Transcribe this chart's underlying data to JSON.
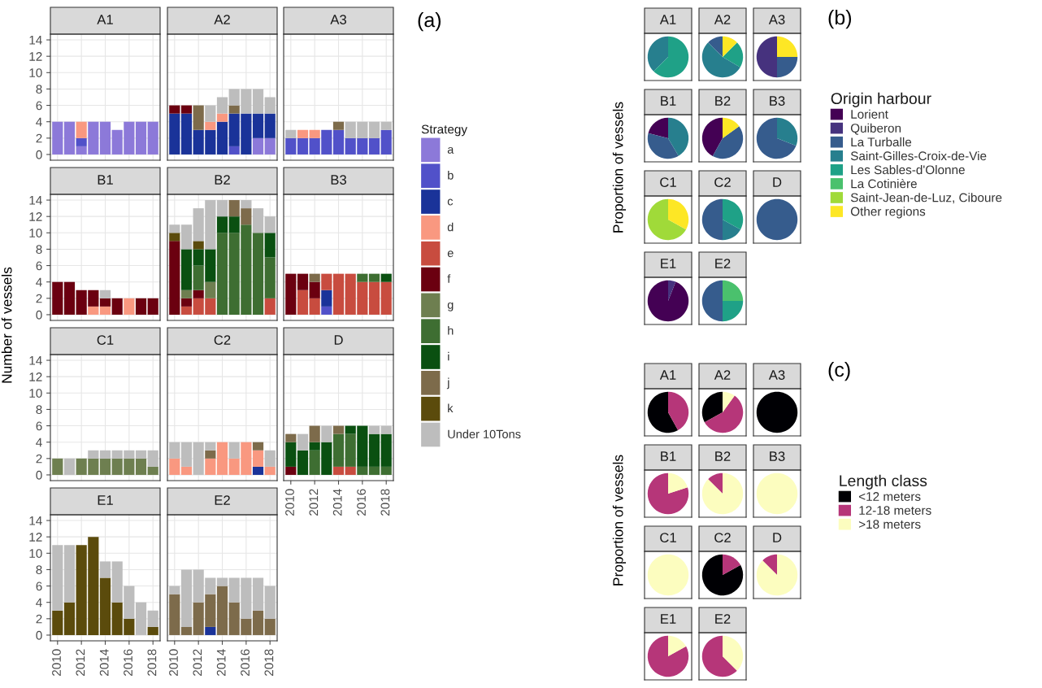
{
  "chart_data": [
    {
      "type": "bar",
      "stacked": true,
      "title": "A1",
      "x": [
        2010,
        2011,
        2012,
        2013,
        2014,
        2015,
        2016,
        2017,
        2018
      ],
      "xlim": [
        2009.4,
        2018.6
      ],
      "xticks": [
        2010,
        2012,
        2014,
        2016,
        2018
      ],
      "ylim": [
        -0.7,
        14.7
      ],
      "yticks": [
        0,
        2,
        4,
        6,
        8,
        10,
        12,
        14
      ],
      "grid": true,
      "tick_labels": "y",
      "legend": "right",
      "legend_title": "Strategy",
      "annotations": [
        "(a)"
      ],
      "series": [
        {
          "name": "a",
          "color": "#8c79d9",
          "values": [
            4,
            4,
            1,
            4,
            4,
            3,
            4,
            4,
            4
          ]
        },
        {
          "name": "b",
          "color": "#5151c9",
          "values": [
            0,
            0,
            1,
            0,
            0,
            0,
            0,
            0,
            0
          ]
        },
        {
          "name": "c",
          "color": "#1a3399",
          "values": [
            0,
            0,
            0,
            0,
            0,
            0,
            0,
            0,
            0
          ]
        },
        {
          "name": "d",
          "color": "#f99880",
          "values": [
            0,
            0,
            2,
            0,
            0,
            0,
            0,
            0,
            0
          ]
        },
        {
          "name": "e",
          "color": "#c84c3f",
          "values": [
            0,
            0,
            0,
            0,
            0,
            0,
            0,
            0,
            0
          ]
        },
        {
          "name": "f",
          "color": "#6b0010",
          "values": [
            0,
            0,
            0,
            0,
            0,
            0,
            0,
            0,
            0
          ]
        },
        {
          "name": "g",
          "color": "#6e7f50",
          "values": [
            0,
            0,
            0,
            0,
            0,
            0,
            0,
            0,
            0
          ]
        },
        {
          "name": "h",
          "color": "#3e6e32",
          "values": [
            0,
            0,
            0,
            0,
            0,
            0,
            0,
            0,
            0
          ]
        },
        {
          "name": "i",
          "color": "#0a5011",
          "values": [
            0,
            0,
            0,
            0,
            0,
            0,
            0,
            0,
            0
          ]
        },
        {
          "name": "j",
          "color": "#7d6b4b",
          "values": [
            0,
            0,
            0,
            0,
            0,
            0,
            0,
            0,
            0
          ]
        },
        {
          "name": "k",
          "color": "#5b4b0c",
          "values": [
            0,
            0,
            0,
            0,
            0,
            0,
            0,
            0,
            0
          ]
        },
        {
          "name": "Under 10Tons",
          "color": "#bdbdbd",
          "values": [
            0,
            0,
            0,
            0,
            0,
            0,
            0,
            0,
            0
          ]
        }
      ]
    },
    {
      "type": "bar",
      "stacked": true,
      "title": "A2",
      "x": [
        2010,
        2011,
        2012,
        2013,
        2014,
        2015,
        2016,
        2017,
        2018
      ],
      "xlim": [
        2009.4,
        2018.6
      ],
      "xticks": [
        2010,
        2012,
        2014,
        2016,
        2018
      ],
      "ylim": [
        -0.7,
        14.7
      ],
      "yticks": [
        0,
        2,
        4,
        6,
        8,
        10,
        12,
        14
      ],
      "grid": true,
      "tick_labels": false,
      "series": [
        {
          "color": "#8c79d9",
          "values": [
            0,
            0,
            0,
            0,
            0,
            0,
            0,
            2,
            2
          ]
        },
        {
          "color": "#5151c9",
          "values": [
            0,
            0,
            0,
            0,
            0,
            1,
            0,
            0,
            0
          ]
        },
        {
          "color": "#1a3399",
          "values": [
            5,
            5,
            3,
            3,
            4,
            4,
            5,
            3,
            3
          ]
        },
        {
          "color": "#f99880",
          "values": [
            0,
            0,
            0,
            1,
            1,
            0,
            0,
            0,
            0
          ]
        },
        {
          "color": "#6b0010",
          "values": [
            1,
            1,
            0,
            0,
            0,
            0,
            0,
            0,
            0
          ]
        },
        {
          "color": "#7d6b4b",
          "values": [
            0,
            0,
            3,
            0,
            0,
            1,
            0,
            0,
            0
          ]
        },
        {
          "color": "#bdbdbd",
          "values": [
            0,
            0,
            0,
            2,
            2,
            2,
            3,
            3,
            2
          ]
        }
      ]
    },
    {
      "type": "bar",
      "stacked": true,
      "title": "A3",
      "x": [
        2010,
        2011,
        2012,
        2013,
        2014,
        2015,
        2016,
        2017,
        2018
      ],
      "xlim": [
        2009.4,
        2018.6
      ],
      "xticks": [
        2010,
        2012,
        2014,
        2016,
        2018
      ],
      "ylim": [
        -0.7,
        14.7
      ],
      "yticks": [
        0,
        2,
        4,
        6,
        8,
        10,
        12,
        14
      ],
      "grid": true,
      "tick_labels": false,
      "series": [
        {
          "color": "#5151c9",
          "values": [
            2,
            2,
            2,
            3,
            3,
            2,
            2,
            2,
            3
          ]
        },
        {
          "color": "#f99880",
          "values": [
            0,
            1,
            1,
            0,
            0,
            0,
            0,
            0,
            0
          ]
        },
        {
          "color": "#7d6b4b",
          "values": [
            0,
            0,
            0,
            0,
            1,
            0,
            0,
            0,
            0
          ]
        },
        {
          "color": "#bdbdbd",
          "values": [
            1,
            0,
            0,
            0,
            0,
            2,
            2,
            2,
            1
          ]
        }
      ]
    },
    {
      "type": "bar",
      "stacked": true,
      "title": "B1",
      "ylabel": "Number of vessels",
      "x": [
        2010,
        2011,
        2012,
        2013,
        2014,
        2015,
        2016,
        2017,
        2018
      ],
      "xlim": [
        2009.4,
        2018.6
      ],
      "xticks": [
        2010,
        2012,
        2014,
        2016,
        2018
      ],
      "ylim": [
        -0.7,
        14.7
      ],
      "yticks": [
        0,
        2,
        4,
        6,
        8,
        10,
        12,
        14
      ],
      "grid": true,
      "tick_labels": "y",
      "series": [
        {
          "color": "#f99880",
          "values": [
            0,
            0,
            0,
            1,
            1,
            0,
            2,
            0,
            0
          ]
        },
        {
          "color": "#6b0010",
          "values": [
            4,
            4,
            3,
            2,
            1,
            2,
            0,
            2,
            2
          ]
        },
        {
          "color": "#bdbdbd",
          "values": [
            0,
            0,
            0,
            0,
            1,
            0,
            0,
            0,
            0
          ]
        }
      ]
    },
    {
      "type": "bar",
      "stacked": true,
      "title": "B2",
      "x": [
        2010,
        2011,
        2012,
        2013,
        2014,
        2015,
        2016,
        2017,
        2018
      ],
      "xlim": [
        2009.4,
        2018.6
      ],
      "xticks": [
        2010,
        2012,
        2014,
        2016,
        2018
      ],
      "ylim": [
        -0.7,
        14.7
      ],
      "yticks": [
        0,
        2,
        4,
        6,
        8,
        10,
        12,
        14
      ],
      "grid": true,
      "tick_labels": false,
      "series": [
        {
          "color": "#c84c3f",
          "values": [
            0,
            1,
            2,
            2,
            0,
            0,
            0,
            0,
            2
          ]
        },
        {
          "color": "#6b0010",
          "values": [
            9,
            1,
            1,
            0,
            0,
            0,
            0,
            0,
            0
          ]
        },
        {
          "color": "#6e7f50",
          "values": [
            0,
            1,
            0,
            2,
            0,
            0,
            0,
            0,
            0
          ]
        },
        {
          "color": "#3e6e32",
          "values": [
            0,
            0,
            3,
            0,
            10,
            10,
            11,
            10,
            5
          ]
        },
        {
          "color": "#0a5011",
          "values": [
            0,
            5,
            2,
            4,
            2,
            2,
            0,
            0,
            3
          ]
        },
        {
          "color": "#7d6b4b",
          "values": [
            0,
            0,
            0,
            0,
            0,
            2,
            2,
            0,
            0
          ]
        },
        {
          "color": "#5b4b0c",
          "values": [
            1,
            0,
            1,
            0,
            0,
            0,
            0,
            0,
            0
          ]
        },
        {
          "color": "#bdbdbd",
          "values": [
            1,
            3,
            4,
            6,
            2,
            0,
            1,
            3,
            2
          ]
        }
      ]
    },
    {
      "type": "bar",
      "stacked": true,
      "title": "B3",
      "x": [
        2010,
        2011,
        2012,
        2013,
        2014,
        2015,
        2016,
        2017,
        2018
      ],
      "xlim": [
        2009.4,
        2018.6
      ],
      "xticks": [
        2010,
        2012,
        2014,
        2016,
        2018
      ],
      "ylim": [
        -0.7,
        14.7
      ],
      "yticks": [
        0,
        2,
        4,
        6,
        8,
        10,
        12,
        14
      ],
      "grid": true,
      "tick_labels": false,
      "series": [
        {
          "color": "#5151c9",
          "values": [
            0,
            0,
            0,
            1,
            0,
            0,
            0,
            0,
            0
          ]
        },
        {
          "color": "#1a3399",
          "values": [
            0,
            0,
            0,
            2,
            0,
            0,
            0,
            0,
            0
          ]
        },
        {
          "color": "#c84c3f",
          "values": [
            0,
            3,
            2,
            2,
            5,
            5,
            4,
            4,
            4
          ]
        },
        {
          "color": "#6b0010",
          "values": [
            5,
            2,
            2,
            0,
            0,
            0,
            0,
            0,
            0
          ]
        },
        {
          "color": "#3e6e32",
          "values": [
            0,
            0,
            0,
            0,
            0,
            0,
            1,
            1,
            0
          ]
        },
        {
          "color": "#0a5011",
          "values": [
            0,
            0,
            0,
            0,
            0,
            0,
            0,
            0,
            1
          ]
        },
        {
          "color": "#7d6b4b",
          "values": [
            0,
            0,
            1,
            0,
            0,
            0,
            0,
            0,
            0
          ]
        }
      ]
    },
    {
      "type": "bar",
      "stacked": true,
      "title": "C1",
      "x": [
        2010,
        2011,
        2012,
        2013,
        2014,
        2015,
        2016,
        2017,
        2018
      ],
      "xlim": [
        2009.4,
        2018.6
      ],
      "xticks": [
        2010,
        2012,
        2014,
        2016,
        2018
      ],
      "ylim": [
        -0.7,
        14.7
      ],
      "yticks": [
        0,
        2,
        4,
        6,
        8,
        10,
        12,
        14
      ],
      "grid": true,
      "tick_labels": "y",
      "series": [
        {
          "color": "#6e7f50",
          "values": [
            2,
            0,
            2,
            2,
            2,
            2,
            2,
            2,
            1
          ]
        },
        {
          "color": "#bdbdbd",
          "values": [
            0,
            2,
            0,
            1,
            1,
            1,
            1,
            1,
            2
          ]
        }
      ]
    },
    {
      "type": "bar",
      "stacked": true,
      "title": "C2",
      "x": [
        2010,
        2011,
        2012,
        2013,
        2014,
        2015,
        2016,
        2017,
        2018
      ],
      "xlim": [
        2009.4,
        2018.6
      ],
      "xticks": [
        2010,
        2012,
        2014,
        2016,
        2018
      ],
      "ylim": [
        -0.7,
        14.7
      ],
      "yticks": [
        0,
        2,
        4,
        6,
        8,
        10,
        12,
        14
      ],
      "grid": true,
      "tick_labels": false,
      "series": [
        {
          "color": "#1a3399",
          "values": [
            0,
            0,
            0,
            0,
            0,
            0,
            0,
            1,
            0
          ]
        },
        {
          "color": "#f99880",
          "values": [
            2,
            1,
            0,
            2,
            4,
            2,
            4,
            2,
            1
          ]
        },
        {
          "color": "#7d6b4b",
          "values": [
            0,
            0,
            0,
            1,
            0,
            0,
            0,
            1,
            0
          ]
        },
        {
          "color": "#bdbdbd",
          "values": [
            2,
            3,
            4,
            1,
            0,
            2,
            0,
            0,
            2
          ]
        }
      ]
    },
    {
      "type": "bar",
      "stacked": true,
      "title": "D",
      "x": [
        2010,
        2011,
        2012,
        2013,
        2014,
        2015,
        2016,
        2017,
        2018
      ],
      "xlim": [
        2009.4,
        2018.6
      ],
      "xticks": [
        2010,
        2012,
        2014,
        2016,
        2018
      ],
      "ylim": [
        -0.7,
        14.7
      ],
      "yticks": [
        0,
        2,
        4,
        6,
        8,
        10,
        12,
        14
      ],
      "grid": true,
      "tick_labels": "x",
      "series": [
        {
          "color": "#c84c3f",
          "values": [
            0,
            0,
            0,
            0,
            1,
            1,
            0,
            0,
            0
          ]
        },
        {
          "color": "#6b0010",
          "values": [
            1,
            0,
            0,
            0,
            0,
            0,
            0,
            0,
            0
          ]
        },
        {
          "color": "#3e6e32",
          "values": [
            0,
            0,
            3,
            0,
            4,
            4,
            1,
            1,
            1
          ]
        },
        {
          "color": "#0a5011",
          "values": [
            3,
            3,
            1,
            4,
            0,
            1,
            5,
            4,
            4
          ]
        },
        {
          "color": "#7d6b4b",
          "values": [
            1,
            0,
            2,
            0,
            1,
            0,
            0,
            0,
            0
          ]
        },
        {
          "color": "#bdbdbd",
          "values": [
            0,
            2,
            0,
            2,
            0,
            0,
            0,
            1,
            1
          ]
        }
      ]
    },
    {
      "type": "bar",
      "stacked": true,
      "title": "E1",
      "x": [
        2010,
        2011,
        2012,
        2013,
        2014,
        2015,
        2016,
        2017,
        2018
      ],
      "xlim": [
        2009.4,
        2018.6
      ],
      "xticks": [
        2010,
        2012,
        2014,
        2016,
        2018
      ],
      "ylim": [
        -0.7,
        14.7
      ],
      "yticks": [
        0,
        2,
        4,
        6,
        8,
        10,
        12,
        14
      ],
      "grid": true,
      "series": [
        {
          "color": "#5b4b0c",
          "values": [
            3,
            4,
            11,
            12,
            7,
            4,
            2,
            0,
            1
          ]
        },
        {
          "color": "#bdbdbd",
          "values": [
            8,
            7,
            0,
            0,
            2,
            5,
            4,
            4,
            2
          ]
        }
      ]
    },
    {
      "type": "bar",
      "stacked": true,
      "title": "E2",
      "x": [
        2010,
        2011,
        2012,
        2013,
        2014,
        2015,
        2016,
        2017,
        2018
      ],
      "xlim": [
        2009.4,
        2018.6
      ],
      "xticks": [
        2010,
        2012,
        2014,
        2016,
        2018
      ],
      "ylim": [
        -0.7,
        14.7
      ],
      "yticks": [
        0,
        2,
        4,
        6,
        8,
        10,
        12,
        14
      ],
      "grid": true,
      "tick_labels": "x",
      "series": [
        {
          "color": "#1a3399",
          "values": [
            0,
            0,
            0,
            1,
            0,
            0,
            0,
            0,
            0
          ]
        },
        {
          "color": "#7d6b4b",
          "values": [
            5,
            1,
            4,
            4,
            6,
            4,
            2,
            3,
            2
          ]
        },
        {
          "color": "#bdbdbd",
          "values": [
            1,
            7,
            4,
            2,
            1,
            3,
            5,
            4,
            4
          ]
        }
      ]
    },
    {
      "type": "pie",
      "title": "A1",
      "legend": "right",
      "legend_title": "Origin harbour",
      "annotations": [
        "(b)"
      ],
      "categories": [
        "Lorient",
        "Quiberon",
        "La Turballe",
        "Saint-Gilles-Croix-de-Vie",
        "Les Sables-d'Olonne",
        "La Cotinière",
        "Saint-Jean-de-Luz, Ciboure",
        "Other regions"
      ],
      "colors": [
        "#440154",
        "#46327e",
        "#365c8d",
        "#277f8e",
        "#1fa187",
        "#4ac16d",
        "#a0da39",
        "#fde725"
      ],
      "values": [
        0,
        0,
        0,
        37.5,
        62.5,
        0,
        0,
        0
      ]
    },
    {
      "type": "pie",
      "title": "A2",
      "categories": [
        null,
        null,
        null,
        null,
        null,
        null,
        null,
        null
      ],
      "colors": [
        "#440154",
        "#46327e",
        "#365c8d",
        "#277f8e",
        "#1fa187",
        "#4ac16d",
        "#a0da39",
        "#fde725"
      ],
      "values": [
        0,
        0,
        12.5,
        54,
        21,
        0,
        0,
        12.5
      ]
    },
    {
      "type": "pie",
      "title": "A3",
      "categories": [
        null,
        null,
        null,
        null,
        null,
        null,
        null,
        null
      ],
      "colors": [
        "#440154",
        "#46327e",
        "#365c8d",
        "#277f8e",
        "#1fa187",
        "#4ac16d",
        "#a0da39",
        "#fde725"
      ],
      "values": [
        0,
        50,
        25,
        0,
        0,
        0,
        0,
        25
      ]
    },
    {
      "type": "pie",
      "title": "B1",
      "ylabel": "Proportion of vessels",
      "categories": [
        null,
        null,
        null,
        null,
        null,
        null,
        null,
        null
      ],
      "colors": [
        "#440154",
        "#46327e",
        "#365c8d",
        "#277f8e",
        "#1fa187",
        "#4ac16d",
        "#a0da39",
        "#fde725"
      ],
      "values": [
        21,
        0,
        37.5,
        41.5,
        0,
        0,
        0,
        0
      ]
    },
    {
      "type": "pie",
      "title": "B2",
      "categories": [
        null,
        null,
        null,
        null,
        null,
        null,
        null,
        null
      ],
      "colors": [
        "#440154",
        "#46327e",
        "#365c8d",
        "#277f8e",
        "#1fa187",
        "#4ac16d",
        "#a0da39",
        "#fde725"
      ],
      "values": [
        42,
        0,
        43,
        0,
        0,
        0,
        0,
        15
      ]
    },
    {
      "type": "pie",
      "title": "B3",
      "categories": [
        null,
        null,
        null,
        null,
        null,
        null,
        null,
        null
      ],
      "colors": [
        "#440154",
        "#46327e",
        "#365c8d",
        "#277f8e",
        "#1fa187",
        "#4ac16d",
        "#a0da39",
        "#fde725"
      ],
      "values": [
        0,
        0,
        69,
        31,
        0,
        0,
        0,
        0
      ]
    },
    {
      "type": "pie",
      "title": "C1",
      "categories": [
        null,
        null,
        null,
        null,
        null,
        null,
        null,
        null
      ],
      "colors": [
        "#440154",
        "#46327e",
        "#365c8d",
        "#277f8e",
        "#1fa187",
        "#4ac16d",
        "#a0da39",
        "#fde725"
      ],
      "values": [
        0,
        0,
        0,
        0,
        0,
        0,
        67,
        33
      ]
    },
    {
      "type": "pie",
      "title": "C2",
      "categories": [
        null,
        null,
        null,
        null,
        null,
        null,
        null,
        null
      ],
      "colors": [
        "#440154",
        "#46327e",
        "#365c8d",
        "#277f8e",
        "#1fa187",
        "#4ac16d",
        "#a0da39",
        "#fde725"
      ],
      "values": [
        0,
        0,
        50,
        17,
        33,
        0,
        0,
        0
      ]
    },
    {
      "type": "pie",
      "title": "D",
      "categories": [
        null,
        null,
        null,
        null,
        null,
        null,
        null,
        null
      ],
      "colors": [
        "#440154",
        "#46327e",
        "#365c8d",
        "#277f8e",
        "#1fa187",
        "#4ac16d",
        "#a0da39",
        "#fde725"
      ],
      "values": [
        0,
        0,
        100,
        0,
        0,
        0,
        0,
        0
      ]
    },
    {
      "type": "pie",
      "title": "E1",
      "categories": [
        null,
        null,
        null,
        null,
        null,
        null,
        null,
        null
      ],
      "colors": [
        "#440154",
        "#46327e",
        "#365c8d",
        "#277f8e",
        "#1fa187",
        "#4ac16d",
        "#a0da39",
        "#fde725"
      ],
      "values": [
        94,
        6,
        0,
        0,
        0,
        0,
        0,
        0
      ]
    },
    {
      "type": "pie",
      "title": "E2",
      "categories": [
        null,
        null,
        null,
        null,
        null,
        null,
        null,
        null
      ],
      "colors": [
        "#440154",
        "#46327e",
        "#365c8d",
        "#277f8e",
        "#1fa187",
        "#4ac16d",
        "#a0da39",
        "#fde725"
      ],
      "values": [
        0,
        0,
        50,
        0,
        25,
        25,
        0,
        0
      ]
    },
    {
      "type": "pie",
      "title": "A1",
      "legend": "right",
      "legend_title": "Length class",
      "annotations": [
        "(c)"
      ],
      "categories": [
        "<12 meters",
        "12-18 meters",
        ">18 meters"
      ],
      "colors": [
        "#000004",
        "#b63679",
        "#fcfdbf"
      ],
      "values": [
        58,
        42,
        0
      ]
    },
    {
      "type": "pie",
      "title": "A2",
      "categories": [
        null,
        null,
        null
      ],
      "colors": [
        "#000004",
        "#b63679",
        "#fcfdbf"
      ],
      "values": [
        33,
        57,
        10
      ]
    },
    {
      "type": "pie",
      "title": "A3",
      "categories": [
        null,
        null,
        null
      ],
      "colors": [
        "#000004",
        "#b63679",
        "#fcfdbf"
      ],
      "values": [
        100,
        0,
        0
      ]
    },
    {
      "type": "pie",
      "title": "B1",
      "ylabel": "Proportion of vessels",
      "categories": [
        null,
        null,
        null
      ],
      "colors": [
        "#000004",
        "#b63679",
        "#fcfdbf"
      ],
      "values": [
        0,
        80,
        20
      ]
    },
    {
      "type": "pie",
      "title": "B2",
      "categories": [
        null,
        null,
        null
      ],
      "colors": [
        "#000004",
        "#b63679",
        "#fcfdbf"
      ],
      "values": [
        0,
        12.5,
        87.5
      ]
    },
    {
      "type": "pie",
      "title": "B3",
      "categories": [
        null,
        null,
        null
      ],
      "colors": [
        "#000004",
        "#b63679",
        "#fcfdbf"
      ],
      "values": [
        0,
        0,
        100
      ]
    },
    {
      "type": "pie",
      "title": "C1",
      "categories": [
        null,
        null,
        null
      ],
      "colors": [
        "#000004",
        "#b63679",
        "#fcfdbf"
      ],
      "values": [
        0,
        0,
        100
      ]
    },
    {
      "type": "pie",
      "title": "C2",
      "categories": [
        null,
        null,
        null
      ],
      "colors": [
        "#000004",
        "#b63679",
        "#fcfdbf"
      ],
      "values": [
        83,
        17,
        0
      ]
    },
    {
      "type": "pie",
      "title": "D",
      "categories": [
        null,
        null,
        null
      ],
      "colors": [
        "#000004",
        "#b63679",
        "#fcfdbf"
      ],
      "values": [
        0,
        12.5,
        87.5
      ]
    },
    {
      "type": "pie",
      "title": "E1",
      "categories": [
        null,
        null,
        null
      ],
      "colors": [
        "#000004",
        "#b63679",
        "#fcfdbf"
      ],
      "values": [
        0,
        83,
        17
      ]
    },
    {
      "type": "pie",
      "title": "E2",
      "categories": [
        null,
        null,
        null
      ],
      "colors": [
        "#000004",
        "#b63679",
        "#fcfdbf"
      ],
      "values": [
        0,
        62.5,
        37.5
      ]
    }
  ]
}
